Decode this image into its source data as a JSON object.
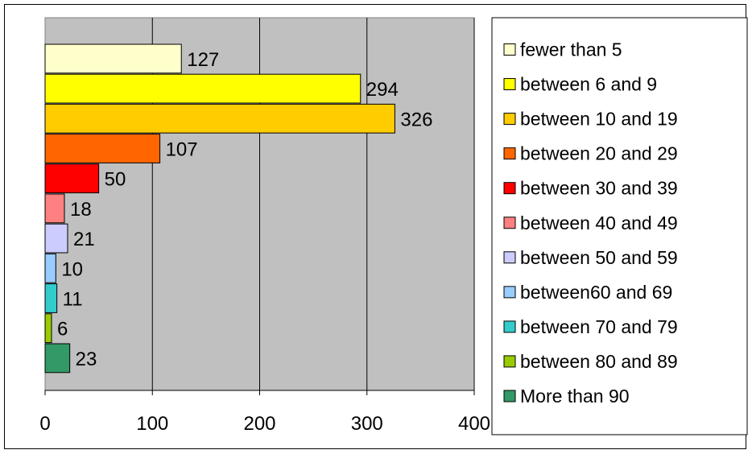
{
  "chart_data": {
    "type": "bar",
    "orientation": "horizontal",
    "series": [
      {
        "name": "fewer than 5",
        "value": 127,
        "color": "#FFFFCC"
      },
      {
        "name": "between 6 and 9",
        "value": 294,
        "color": "#FFFF00"
      },
      {
        "name": "between 10 and 19",
        "value": 326,
        "color": "#FFCC00"
      },
      {
        "name": "between 20 and 29",
        "value": 107,
        "color": "#FF6600"
      },
      {
        "name": "between 30 and 39",
        "value": 50,
        "color": "#FF0000"
      },
      {
        "name": "between 40 and 49",
        "value": 18,
        "color": "#FF8080"
      },
      {
        "name": "between 50 and 59",
        "value": 21,
        "color": "#CCCCFF"
      },
      {
        "name": "between60 and 69",
        "value": 10,
        "color": "#99CCFF"
      },
      {
        "name": "between 70 and 79",
        "value": 11,
        "color": "#33CCCC"
      },
      {
        "name": "between 80 and 89",
        "value": 6,
        "color": "#99CC00"
      },
      {
        "name": "More than 90",
        "value": 23,
        "color": "#339966"
      }
    ],
    "x_ticks": [
      "0",
      "100",
      "200",
      "300",
      "400"
    ],
    "xlim": [
      0,
      400
    ],
    "title": "",
    "xlabel": "",
    "ylabel": "",
    "grid": "vertical",
    "plot_background": "#C0C0C0",
    "legend": "right"
  }
}
